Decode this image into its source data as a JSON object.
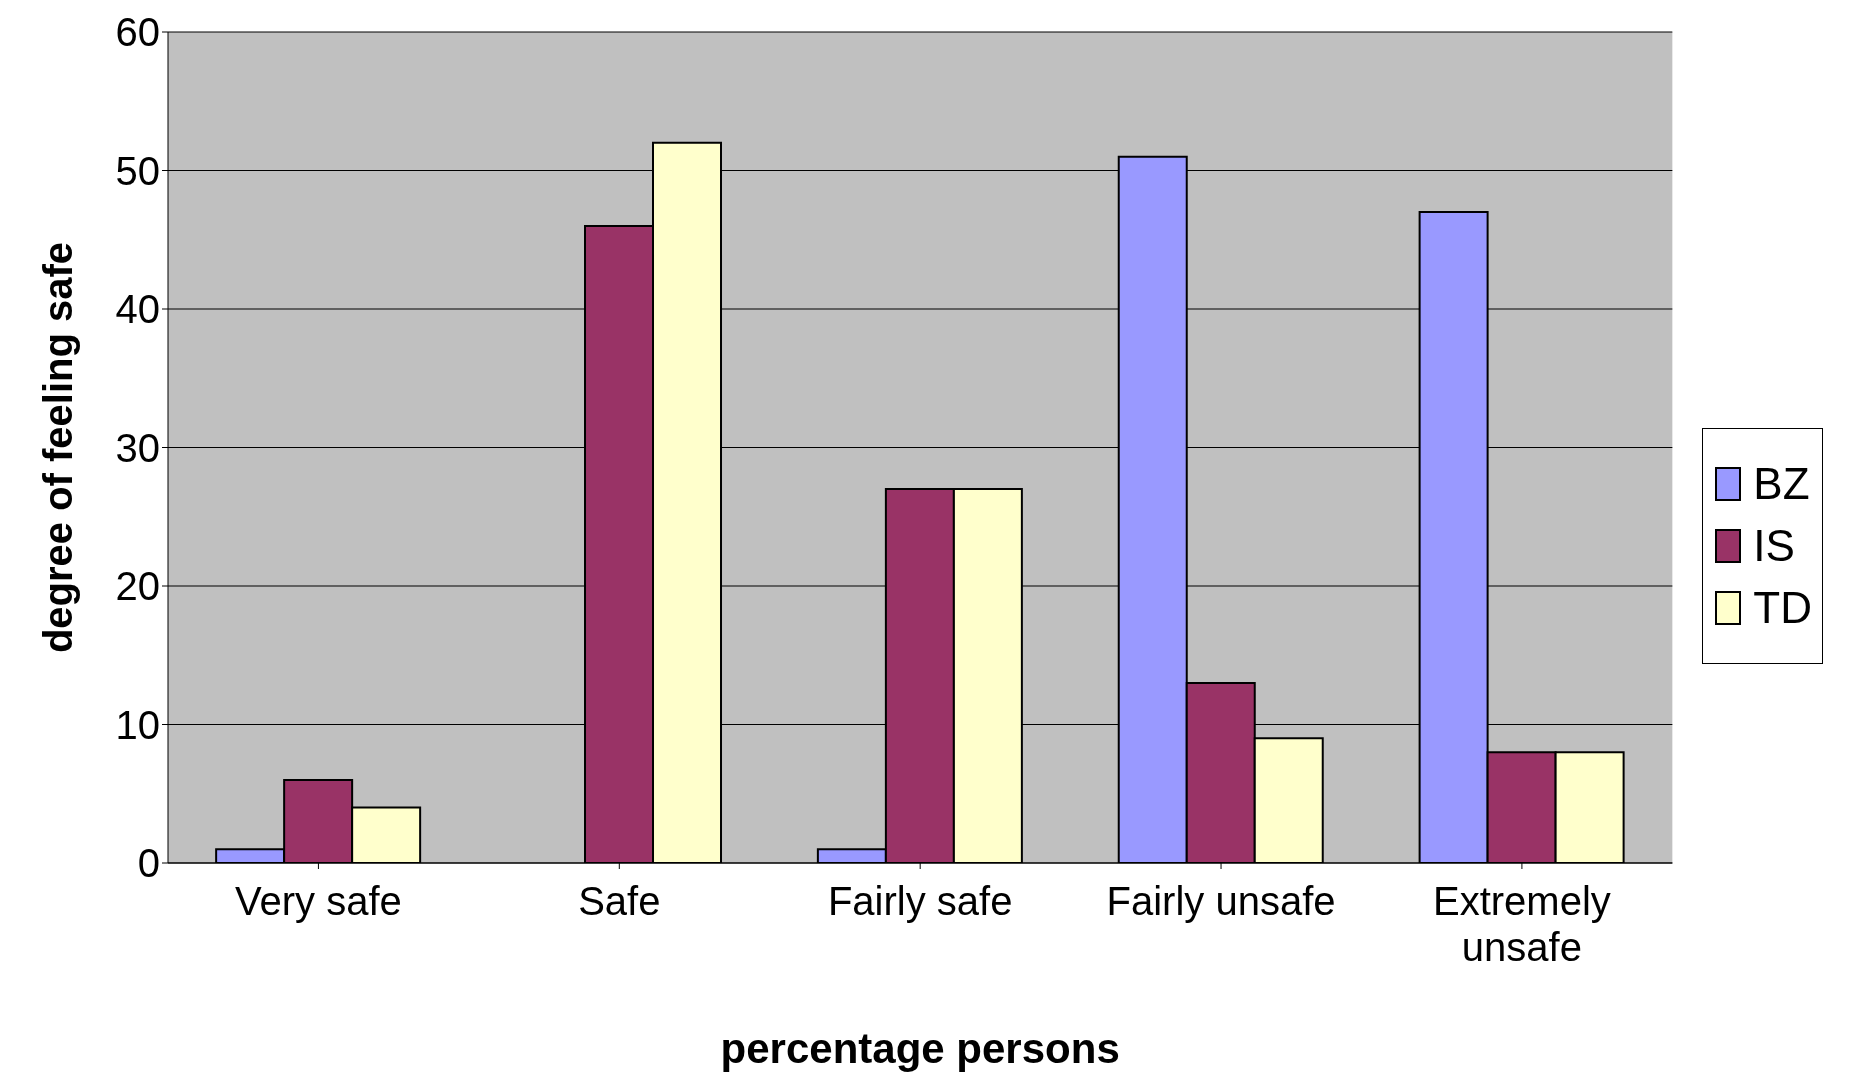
{
  "chart_data": {
    "type": "bar",
    "xlabel": "percentage persons",
    "ylabel": "degree of feeling safe",
    "categories": [
      "Very safe",
      "Safe",
      "Fairly safe",
      "Fairly unsafe",
      "Extremely unsafe"
    ],
    "series": [
      {
        "name": "BZ",
        "color": "#9999ff",
        "values": [
          1,
          0,
          1,
          51,
          47
        ]
      },
      {
        "name": "IS",
        "color": "#993366",
        "values": [
          6,
          46,
          27,
          13,
          8
        ]
      },
      {
        "name": "TD",
        "color": "#ffffcc",
        "values": [
          4,
          52,
          27,
          9,
          8
        ]
      }
    ],
    "ylim": [
      0,
      60
    ],
    "yticks": [
      0,
      10,
      20,
      30,
      40,
      50,
      60
    ],
    "grid": "y",
    "legend": "right"
  }
}
